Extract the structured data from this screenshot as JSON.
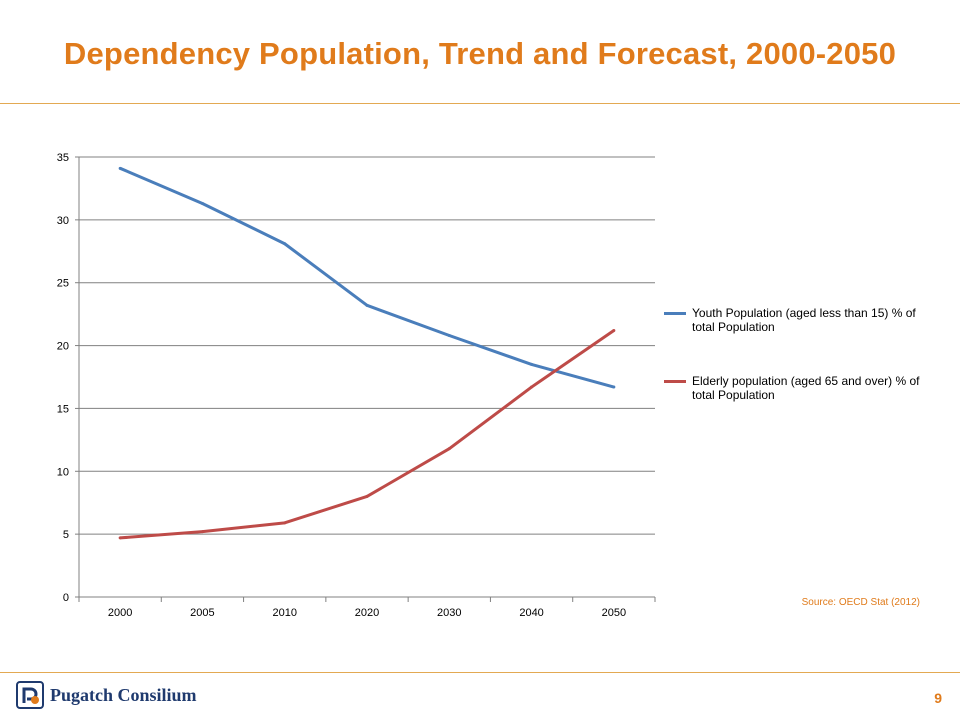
{
  "slide": {
    "title": "Dependency Population, Trend and Forecast, 2000-2050",
    "source": "Source: OECD Stat (2012)",
    "logo_text": "Pugatch Consilium",
    "page_number": "9"
  },
  "colors": {
    "title": "#E07B1B",
    "rule": "#E3A952",
    "youth": "#4A7EBB",
    "elderly": "#BE4B48",
    "grid": "#808080",
    "source": "#E07B1B",
    "logo": "#1F3A6E"
  },
  "icons": {
    "logo": "pugatch-logo-icon"
  },
  "chart_data": {
    "type": "line",
    "title": "",
    "xlabel": "",
    "ylabel": "",
    "categories": [
      "2000",
      "2005",
      "2010",
      "2020",
      "2030",
      "2040",
      "2050"
    ],
    "yticks": [
      "0",
      "5",
      "10",
      "15",
      "20",
      "25",
      "30",
      "35"
    ],
    "ylim": [
      0,
      35
    ],
    "grid": true,
    "legend_position": "right",
    "series": [
      {
        "name": "Youth Population (aged less than 15) % of total Population",
        "values": [
          34.1,
          31.3,
          28.1,
          23.2,
          20.8,
          18.5,
          16.7
        ]
      },
      {
        "name": "Elderly population (aged 65 and over) % of total Population",
        "values": [
          4.7,
          5.2,
          5.9,
          8.0,
          11.8,
          16.7,
          21.2
        ]
      }
    ]
  }
}
